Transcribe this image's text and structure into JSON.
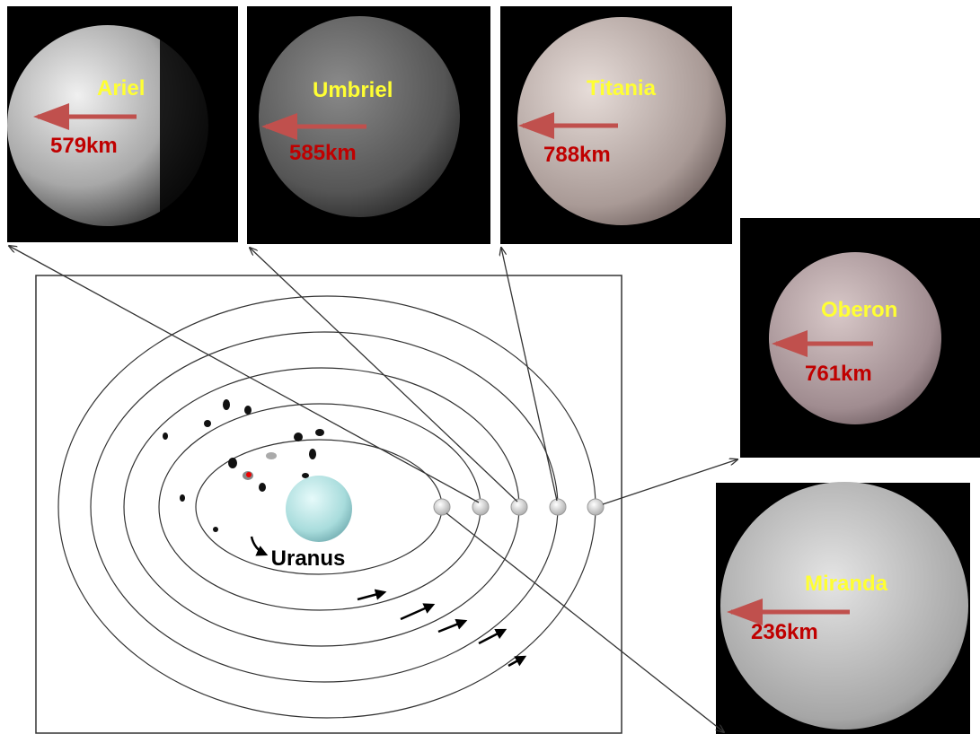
{
  "moons": [
    {
      "name": "Ariel",
      "radius": "579km"
    },
    {
      "name": "Umbriel",
      "radius": "585km"
    },
    {
      "name": "Titania",
      "radius": "788km"
    },
    {
      "name": "Oberon",
      "radius": "761km"
    },
    {
      "name": "Miranda",
      "radius": "236km"
    }
  ],
  "planet": {
    "label": "Uranus"
  }
}
